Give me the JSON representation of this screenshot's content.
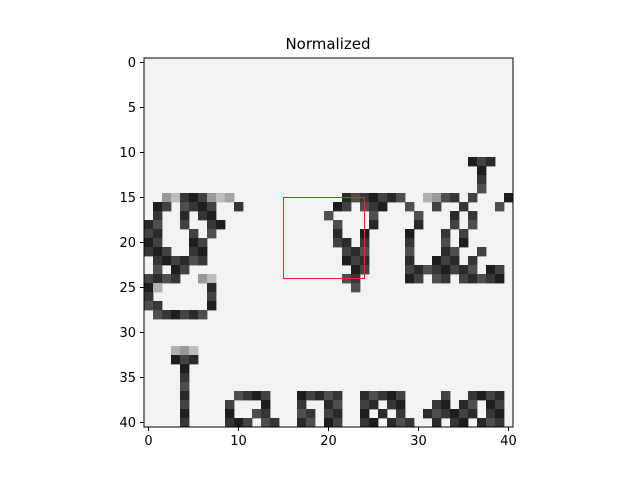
{
  "chart_data": {
    "type": "heatmap",
    "title": "Normalized",
    "xlabel": "",
    "ylabel": "",
    "grid": false,
    "colormap": "gray",
    "xlim": [
      -0.5,
      40.5
    ],
    "ylim": [
      40.5,
      -0.5
    ],
    "x_ticks": [
      0,
      10,
      20,
      30,
      40
    ],
    "y_ticks": [
      0,
      5,
      10,
      15,
      20,
      25,
      30,
      35,
      40
    ],
    "highlight_box": {
      "x0": 15,
      "y0": 15,
      "x1": 24,
      "y1": 24,
      "color": "#e8262b"
    },
    "rows": [
      "                                         ",
      "                                         ",
      "                                         ",
      "                                         ",
      "                                         ",
      "                                         ",
      "                                         ",
      "                                         ",
      "                                         ",
      "                                         ",
      "                                         ",
      "                                    ###  ",
      "                                     #   ",
      "                                     #   ",
      "                                     #   ",
      "  ++###+++            #######  ++## #   #",
      " ## ####  #          ## ###  #  #  #   #",
      " #  # ##            #    #    #   # #   ",
      "##  #  ##            #   #    #   # #   ",
      "##   # #             #  #    #   # #    ",
      "##   ##              ## #    #   # #    ",
      "###  ##               ###    #   ##  #  ",
      " ######               ###    #  ### #   ",
      " # ##                  ##    ######## ##",
      "####  ++              ##     ## ## #####",
      "#+     #               #                ",
      "#      #                                ",
      "##     #                                ",
      " ######                                 ",
      "                                         ",
      "                                         ",
      "                                         ",
      "   +++                                  ",
      "   ###                                  ",
      "    #                                   ",
      "    #                                   ",
      "    #                                   ",
      "    #     ####   #####  #####    #  ####",
      "    #    #   #   #  ##  ## ##   ## ## ##",
      "    #    #  ##   ## ##  # # #  ###### ##",
      "    #    ### ##  ## ##  ## ###  # ## ###"
    ]
  }
}
